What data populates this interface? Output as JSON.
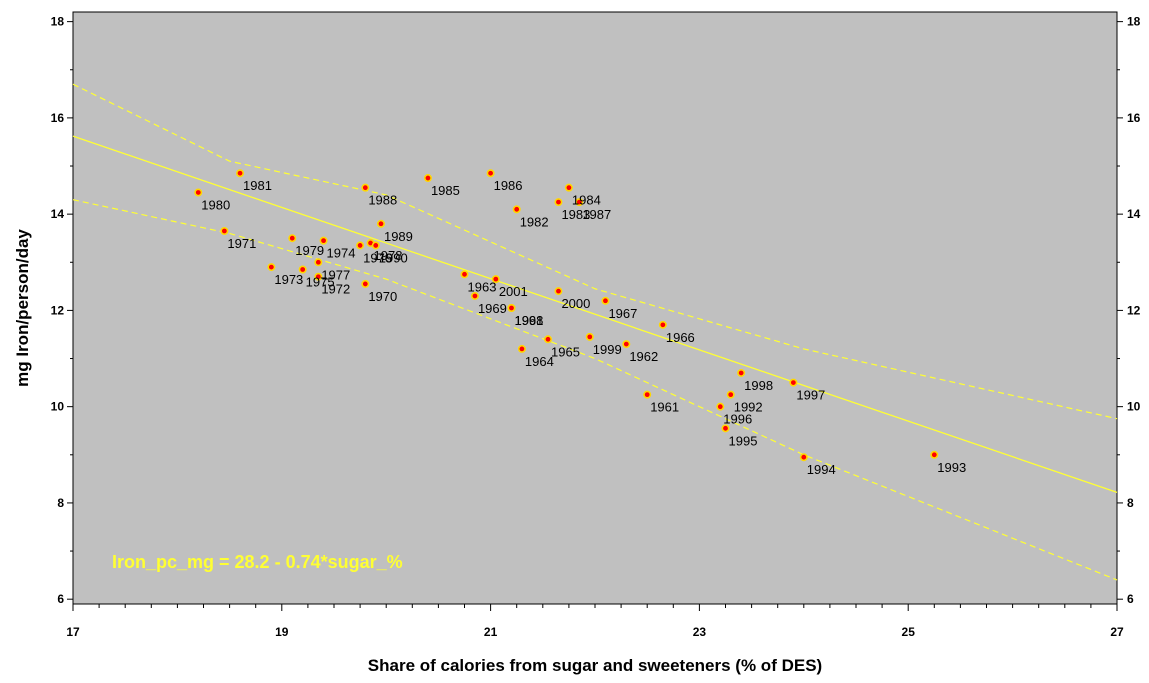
{
  "chart_data": {
    "type": "scatter",
    "title": "",
    "xlabel": "Share of calories from sugar and sweeteners (% of DES)",
    "ylabel": "mg Iron/person/day",
    "xlim": [
      17,
      27
    ],
    "ylim": [
      5.9,
      18.2
    ],
    "x_ticks": [
      17,
      19,
      21,
      23,
      25,
      27
    ],
    "y_ticks": [
      6,
      8,
      10,
      12,
      14,
      16,
      18
    ],
    "grid": false,
    "equation": "Iron_pc_mg = 28.2 - 0.74*sugar_%",
    "regression": {
      "intercept": 28.2,
      "slope": -0.74
    },
    "colors": {
      "plot_background": "#c0c0c0",
      "fit_line": "#ffff33",
      "point_fill": "#ff0000",
      "point_outline": "#ffd700"
    },
    "confidence_band": {
      "upper": [
        [
          17,
          16.7
        ],
        [
          18.5,
          15.1
        ],
        [
          20,
          14.4
        ],
        [
          22,
          12.45
        ],
        [
          24,
          11.2
        ],
        [
          27,
          9.75
        ]
      ],
      "lower": [
        [
          17,
          14.3
        ],
        [
          18.5,
          13.6
        ],
        [
          20,
          12.65
        ],
        [
          22,
          11.0
        ],
        [
          24,
          9.0
        ],
        [
          27,
          6.4
        ]
      ]
    },
    "points": [
      {
        "year": "1961",
        "x": 22.5,
        "y": 10.25
      },
      {
        "year": "1962",
        "x": 22.3,
        "y": 11.3
      },
      {
        "year": "1963",
        "x": 20.75,
        "y": 12.75
      },
      {
        "year": "1964",
        "x": 21.3,
        "y": 11.2
      },
      {
        "year": "1965",
        "x": 21.55,
        "y": 11.4
      },
      {
        "year": "1966",
        "x": 22.65,
        "y": 11.7
      },
      {
        "year": "1967",
        "x": 22.1,
        "y": 12.2
      },
      {
        "year": "1968",
        "x": 21.2,
        "y": 12.05
      },
      {
        "year": "1969",
        "x": 20.85,
        "y": 12.3
      },
      {
        "year": "1970",
        "x": 19.8,
        "y": 12.55
      },
      {
        "year": "1971",
        "x": 18.45,
        "y": 13.65
      },
      {
        "year": "1972",
        "x": 19.35,
        "y": 12.7
      },
      {
        "year": "1973",
        "x": 18.9,
        "y": 12.9
      },
      {
        "year": "1974",
        "x": 19.4,
        "y": 13.45
      },
      {
        "year": "1975",
        "x": 19.2,
        "y": 12.85
      },
      {
        "year": "1976",
        "x": 19.75,
        "y": 13.35
      },
      {
        "year": "1977",
        "x": 19.35,
        "y": 13.0
      },
      {
        "year": "1978",
        "x": 19.85,
        "y": 13.4
      },
      {
        "year": "1979",
        "x": 19.1,
        "y": 13.5
      },
      {
        "year": "1980",
        "x": 18.2,
        "y": 14.45
      },
      {
        "year": "1981",
        "x": 18.6,
        "y": 14.85
      },
      {
        "year": "1982",
        "x": 21.25,
        "y": 14.1
      },
      {
        "year": "1983",
        "x": 21.65,
        "y": 14.25
      },
      {
        "year": "1984",
        "x": 21.75,
        "y": 14.55
      },
      {
        "year": "1985",
        "x": 20.4,
        "y": 14.75
      },
      {
        "year": "1986",
        "x": 21.0,
        "y": 14.85
      },
      {
        "year": "1987",
        "x": 21.85,
        "y": 14.25
      },
      {
        "year": "1988",
        "x": 19.8,
        "y": 14.55
      },
      {
        "year": "1989",
        "x": 19.95,
        "y": 13.8
      },
      {
        "year": "1990",
        "x": 19.9,
        "y": 13.35
      },
      {
        "year": "1991",
        "x": 21.2,
        "y": 12.05
      },
      {
        "year": "1992",
        "x": 23.3,
        "y": 10.25
      },
      {
        "year": "1993",
        "x": 25.25,
        "y": 9.0
      },
      {
        "year": "1994",
        "x": 24.0,
        "y": 8.95
      },
      {
        "year": "1995",
        "x": 23.25,
        "y": 9.55
      },
      {
        "year": "1996",
        "x": 23.2,
        "y": 10.0
      },
      {
        "year": "1997",
        "x": 23.9,
        "y": 10.5
      },
      {
        "year": "1998",
        "x": 23.4,
        "y": 10.7
      },
      {
        "year": "1999",
        "x": 21.95,
        "y": 11.45
      },
      {
        "year": "2000",
        "x": 21.65,
        "y": 12.4
      },
      {
        "year": "2001",
        "x": 21.05,
        "y": 12.65
      }
    ]
  }
}
